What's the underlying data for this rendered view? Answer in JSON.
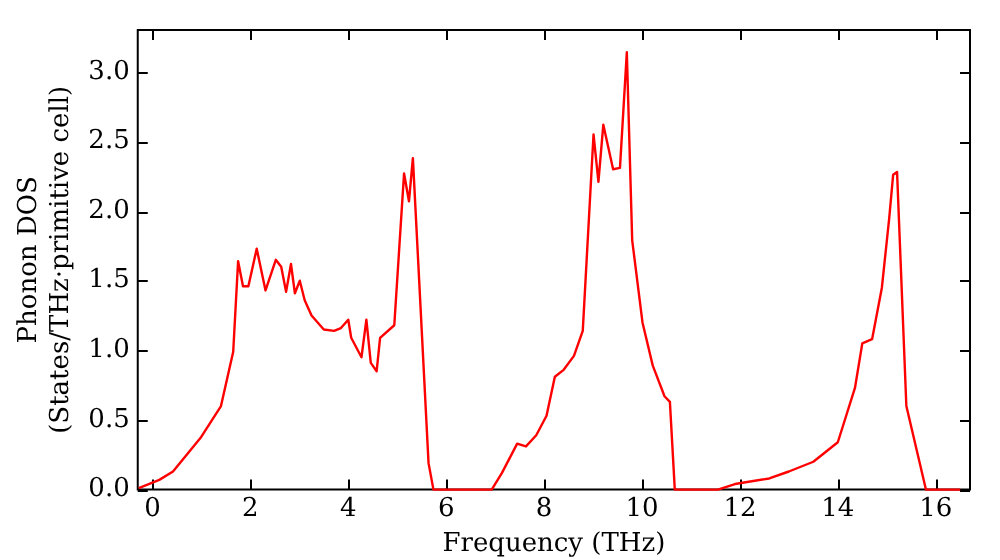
{
  "chart_data": {
    "type": "line",
    "xlabel": "Frequency (THz)",
    "ylabel": "Phonon DOS\n(States/THz·primitive cell)",
    "xlim": [
      -0.3,
      16.7
    ],
    "ylim": [
      0,
      3.3
    ],
    "xticks": [
      0,
      2,
      4,
      6,
      8,
      10,
      12,
      14,
      16
    ],
    "yticks": [
      {
        "value": 0,
        "label": "0.0"
      },
      {
        "value": 0.5,
        "label": "0.5"
      },
      {
        "value": 1,
        "label": "1.0"
      },
      {
        "value": 1.5,
        "label": "1.5"
      },
      {
        "value": 2,
        "label": "2.0"
      },
      {
        "value": 2.5,
        "label": "2.5"
      },
      {
        "value": 3,
        "label": "3.0"
      }
    ],
    "grid": false,
    "legend": false,
    "marker": "none",
    "line_style": "solid",
    "series": [
      {
        "color": "#ff0000",
        "x": [
          -0.28,
          0.14,
          0.42,
          0.98,
          1.4,
          1.65,
          1.75,
          1.85,
          1.96,
          2.13,
          2.31,
          2.52,
          2.63,
          2.73,
          2.83,
          2.91,
          3.01,
          3.11,
          3.25,
          3.5,
          3.71,
          3.85,
          4.0,
          4.06,
          4.27,
          4.37,
          4.46,
          4.58,
          4.65,
          4.94,
          5.14,
          5.24,
          5.32,
          5.64,
          5.74,
          6.93,
          7.14,
          7.45,
          7.63,
          7.84,
          8.05,
          8.22,
          8.4,
          8.61,
          8.79,
          9.01,
          9.11,
          9.21,
          9.41,
          9.55,
          9.69,
          9.8,
          10.01,
          10.22,
          10.46,
          10.57,
          10.67,
          11.55,
          11.9,
          12.6,
          13.0,
          13.5,
          14.0,
          14.35,
          14.5,
          14.7,
          14.9,
          15.05,
          15.13,
          15.21,
          15.4,
          15.6,
          15.8,
          16.5
        ],
        "values": [
          0.01,
          0.07,
          0.13,
          0.37,
          0.6,
          0.99,
          1.64,
          1.46,
          1.46,
          1.73,
          1.43,
          1.65,
          1.6,
          1.42,
          1.62,
          1.41,
          1.5,
          1.36,
          1.25,
          1.15,
          1.14,
          1.16,
          1.22,
          1.09,
          0.95,
          1.22,
          0.91,
          0.85,
          1.09,
          1.18,
          2.27,
          2.07,
          2.38,
          0.19,
          0,
          0,
          0.12,
          0.33,
          0.31,
          0.39,
          0.53,
          0.81,
          0.86,
          0.96,
          1.14,
          2.55,
          2.21,
          2.62,
          2.3,
          2.31,
          3.14,
          1.79,
          1.2,
          0.89,
          0.67,
          0.63,
          0,
          0,
          0.04,
          0.08,
          0.13,
          0.2,
          0.34,
          0.73,
          1.05,
          1.08,
          1.45,
          1.95,
          2.26,
          2.28,
          0.6,
          0.3,
          0,
          0
        ]
      }
    ]
  }
}
